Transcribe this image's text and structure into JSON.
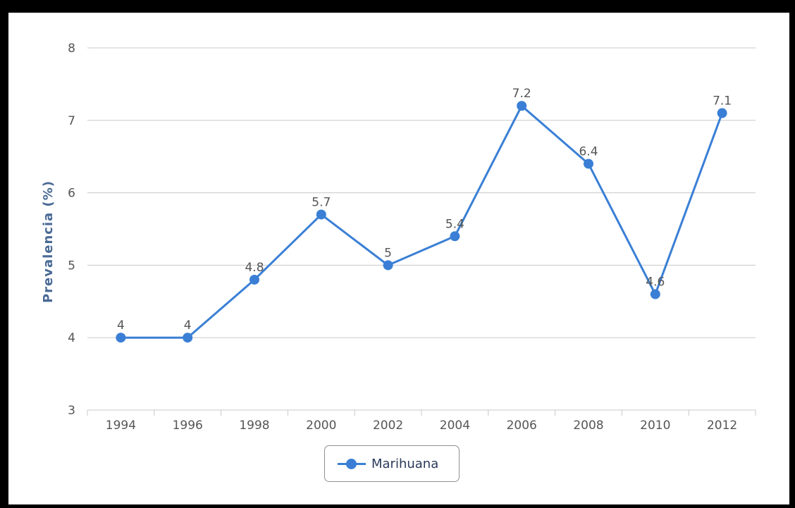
{
  "chart_data": {
    "type": "line",
    "categories": [
      "1994",
      "1996",
      "1998",
      "2000",
      "2002",
      "2004",
      "2006",
      "2008",
      "2010",
      "2012"
    ],
    "series": [
      {
        "name": "Marihuana",
        "values": [
          4,
          4,
          4.8,
          5.7,
          5,
          5.4,
          7.2,
          6.4,
          4.6,
          7.1
        ],
        "color": "#3a7fd5"
      }
    ],
    "data_labels": [
      "4",
      "4",
      "4.8",
      "5.7",
      "5",
      "5.4",
      "7.2",
      "6.4",
      "4.6",
      "7.1"
    ],
    "ylabel": "Prevalencia (%)",
    "ylim": [
      3,
      8
    ],
    "yticks": [
      "3",
      "4",
      "5",
      "6",
      "7",
      "8"
    ],
    "grid": true,
    "legend_position": "bottom-center"
  },
  "colors": {
    "series": "#3a7fd5",
    "gridline": "#c8c8c8",
    "axis_title": "#4a6a95"
  }
}
